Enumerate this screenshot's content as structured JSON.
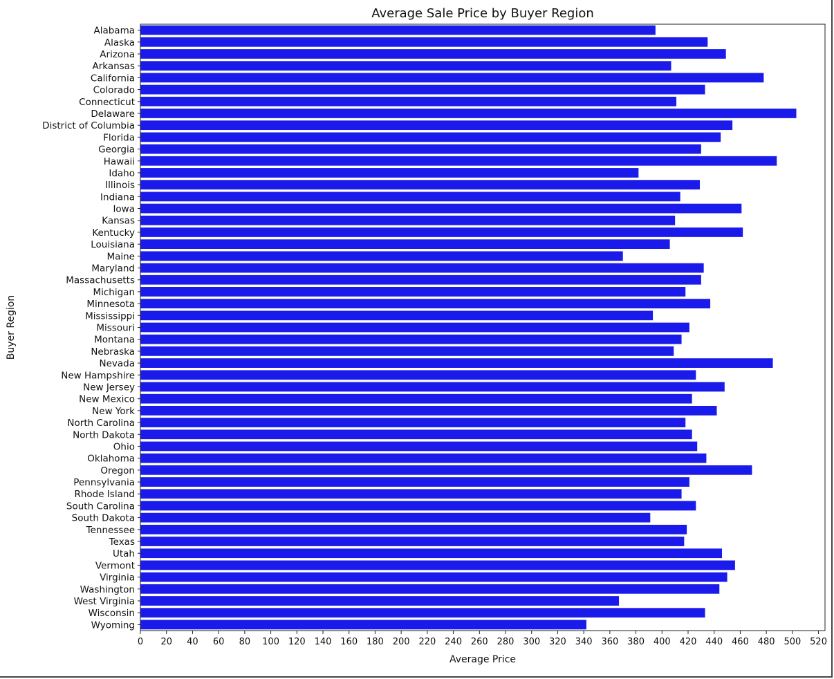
{
  "chart_data": {
    "type": "bar",
    "orientation": "horizontal",
    "title": "Average Sale Price by Buyer Region",
    "xlabel": "Average Price",
    "ylabel": "Buyer Region",
    "xlim": [
      0,
      525
    ],
    "x_ticks": [
      0,
      20,
      40,
      60,
      80,
      100,
      120,
      140,
      160,
      180,
      200,
      220,
      240,
      260,
      280,
      300,
      320,
      340,
      360,
      380,
      400,
      420,
      440,
      460,
      480,
      500,
      520
    ],
    "grid": false,
    "bar_color": "#1a1aeb",
    "categories": [
      "Alabama",
      "Alaska",
      "Arizona",
      "Arkansas",
      "California",
      "Colorado",
      "Connecticut",
      "Delaware",
      "District of Columbia",
      "Florida",
      "Georgia",
      "Hawaii",
      "Idaho",
      "Illinois",
      "Indiana",
      "Iowa",
      "Kansas",
      "Kentucky",
      "Louisiana",
      "Maine",
      "Maryland",
      "Massachusetts",
      "Michigan",
      "Minnesota",
      "Mississippi",
      "Missouri",
      "Montana",
      "Nebraska",
      "Nevada",
      "New Hampshire",
      "New Jersey",
      "New Mexico",
      "New York",
      "North Carolina",
      "North Dakota",
      "Ohio",
      "Oklahoma",
      "Oregon",
      "Pennsylvania",
      "Rhode Island",
      "South Carolina",
      "South Dakota",
      "Tennessee",
      "Texas",
      "Utah",
      "Vermont",
      "Virginia",
      "Washington",
      "West Virginia",
      "Wisconsin",
      "Wyoming"
    ],
    "values": [
      395,
      435,
      449,
      407,
      478,
      433,
      411,
      503,
      454,
      445,
      430,
      488,
      382,
      429,
      414,
      461,
      410,
      462,
      406,
      370,
      432,
      430,
      418,
      437,
      393,
      421,
      415,
      409,
      485,
      426,
      448,
      423,
      442,
      418,
      423,
      427,
      434,
      469,
      421,
      415,
      426,
      391,
      419,
      417,
      446,
      456,
      450,
      444,
      367,
      433,
      342
    ]
  }
}
